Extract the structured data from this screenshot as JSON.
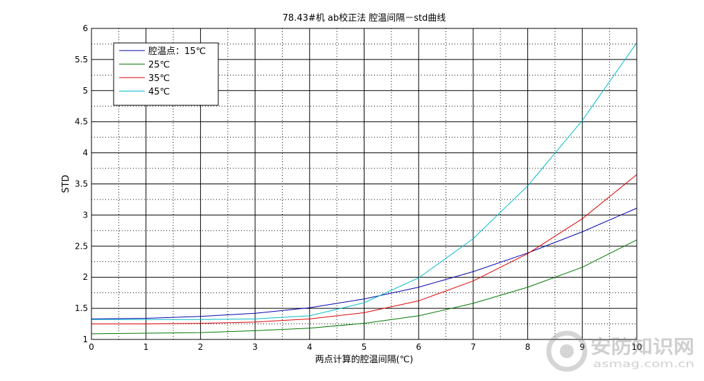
{
  "chart_data": {
    "type": "line",
    "title": "78.43#机 ab校正法 腔温间隔－std曲线",
    "xlabel": "两点计算的腔温间隔(℃)",
    "ylabel": "STD",
    "xlim": [
      0,
      10
    ],
    "ylim": [
      1,
      6
    ],
    "x_ticks": [
      "0",
      "1",
      "2",
      "3",
      "4",
      "5",
      "6",
      "7",
      "8",
      "9",
      "10"
    ],
    "y_ticks": [
      "1",
      "1.5",
      "2",
      "2.5",
      "3",
      "3.5",
      "4",
      "4.5",
      "5",
      "5.5",
      "6"
    ],
    "grid": "major solid, minor dotted",
    "legend_position": "top-left",
    "series": [
      {
        "name": "腔温点：15℃",
        "color": "#0000aa",
        "x": [
          0,
          1,
          2,
          3,
          4,
          5,
          6,
          7,
          8,
          9,
          10
        ],
        "values": [
          1.33,
          1.34,
          1.37,
          1.42,
          1.51,
          1.65,
          1.84,
          2.09,
          2.39,
          2.73,
          3.11
        ]
      },
      {
        "name": "25℃",
        "color": "#007700",
        "x": [
          0,
          1,
          2,
          3,
          4,
          5,
          6,
          7,
          8,
          9,
          10
        ],
        "values": [
          1.09,
          1.1,
          1.11,
          1.14,
          1.18,
          1.26,
          1.38,
          1.58,
          1.84,
          2.16,
          2.6
        ]
      },
      {
        "name": "35℃",
        "color": "#dd0000",
        "x": [
          0,
          1,
          2,
          3,
          4,
          5,
          6,
          7,
          8,
          9,
          10
        ],
        "values": [
          1.25,
          1.25,
          1.26,
          1.28,
          1.33,
          1.43,
          1.62,
          1.94,
          2.38,
          2.94,
          3.65
        ]
      },
      {
        "name": "45℃",
        "color": "#00bbcc",
        "x": [
          0,
          1,
          2,
          3,
          4,
          5,
          6,
          7,
          8,
          9,
          10
        ],
        "values": [
          1.32,
          1.32,
          1.32,
          1.33,
          1.38,
          1.59,
          1.99,
          2.62,
          3.47,
          4.52,
          5.77
        ]
      }
    ]
  },
  "watermark": {
    "text": "安防知识网",
    "url_text": "asmag.com.cn",
    "icon": "circle-logo-icon"
  }
}
